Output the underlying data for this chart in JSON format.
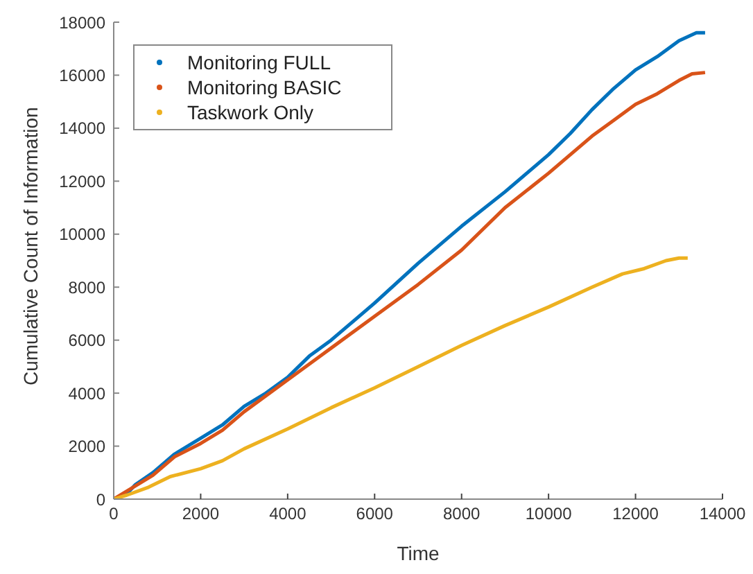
{
  "chart_data": {
    "type": "line",
    "xlabel": "Time",
    "ylabel": "Cumulative Count of Information",
    "xlim": [
      0,
      14000
    ],
    "xticks": [
      0,
      2000,
      4000,
      6000,
      8000,
      10000,
      12000,
      14000
    ],
    "ylim": [
      0,
      18000
    ],
    "yticks": [
      0,
      2000,
      4000,
      6000,
      8000,
      10000,
      12000,
      14000,
      16000,
      18000
    ],
    "grid": false,
    "legend": "top left",
    "marker": "none",
    "line_style": "solid",
    "series": [
      {
        "name": "Monitoring FULL",
        "color": "#0072bd",
        "x": [
          0,
          300,
          500,
          900,
          1400,
          2000,
          2500,
          3000,
          3500,
          4000,
          4500,
          5000,
          6000,
          7000,
          8000,
          9000,
          10000,
          10500,
          11000,
          11500,
          12000,
          12500,
          13000,
          13400,
          13600
        ],
        "values": [
          0,
          200,
          550,
          1000,
          1700,
          2300,
          2800,
          3500,
          4000,
          4600,
          5400,
          6000,
          7400,
          8900,
          10300,
          11600,
          13000,
          13800,
          14700,
          15500,
          16200,
          16700,
          17300,
          17600,
          17600
        ]
      },
      {
        "name": "Monitoring BASIC",
        "color": "#d95319",
        "x": [
          0,
          500,
          900,
          1400,
          2000,
          2500,
          3000,
          4000,
          5000,
          6000,
          7000,
          8000,
          9000,
          10000,
          10500,
          11000,
          11500,
          12000,
          12500,
          13000,
          13300,
          13600
        ],
        "values": [
          0,
          500,
          900,
          1600,
          2100,
          2600,
          3300,
          4500,
          5700,
          6900,
          8100,
          9400,
          11000,
          12300,
          13000,
          13700,
          14300,
          14900,
          15300,
          15800,
          16050,
          16100
        ]
      },
      {
        "name": "Taskwork Only",
        "color": "#edb120",
        "x": [
          0,
          300,
          800,
          1300,
          2000,
          2500,
          3000,
          4000,
          5000,
          6000,
          7000,
          8000,
          9000,
          10000,
          11000,
          11700,
          12200,
          12700,
          13000,
          13200
        ],
        "values": [
          0,
          150,
          450,
          850,
          1150,
          1450,
          1900,
          2650,
          3450,
          4200,
          5000,
          5800,
          6550,
          7250,
          8000,
          8500,
          8700,
          9000,
          9100,
          9100
        ]
      }
    ]
  }
}
